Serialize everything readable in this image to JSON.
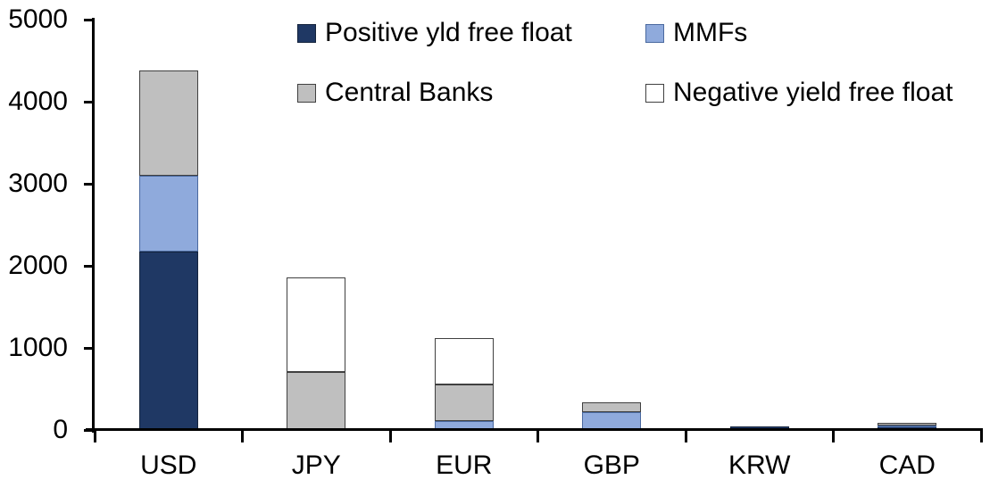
{
  "chart_data": {
    "type": "bar",
    "stacked": true,
    "title": "",
    "categories": [
      "USD",
      "JPY",
      "EUR",
      "GBP",
      "KRW",
      "CAD"
    ],
    "series": [
      {
        "name": "Positive yld free float",
        "color": "#1F3864",
        "border_color": "#14233C",
        "values": [
          2170,
          0,
          0,
          0,
          45,
          40
        ]
      },
      {
        "name": "MMFs",
        "color": "#8FAADC",
        "border_color": "#4A699F",
        "values": [
          930,
          0,
          110,
          220,
          0,
          15
        ]
      },
      {
        "name": "Central Banks",
        "color": "#BFBFBF",
        "border_color": "#404040",
        "values": [
          1280,
          710,
          445,
          120,
          0,
          30
        ]
      },
      {
        "name": "Negative yield free float",
        "color": "#FFFFFF",
        "border_color": "#404040",
        "values": [
          0,
          1150,
          565,
          0,
          0,
          0
        ]
      }
    ],
    "y_axis": {
      "ticks": [
        0,
        1000,
        2000,
        3000,
        4000,
        5000
      ],
      "range": [
        0,
        5000
      ]
    },
    "x_axis": {
      "labels": [
        "USD",
        "JPY",
        "EUR",
        "GBP",
        "KRW",
        "CAD"
      ]
    },
    "legend": {
      "position": "top",
      "rows": [
        [
          "Positive yld free float",
          "MMFs"
        ],
        [
          "Central Banks",
          "Negative yield free float"
        ]
      ]
    },
    "grid": false,
    "axis_color": "#000000",
    "background": "#FFFFFF"
  }
}
